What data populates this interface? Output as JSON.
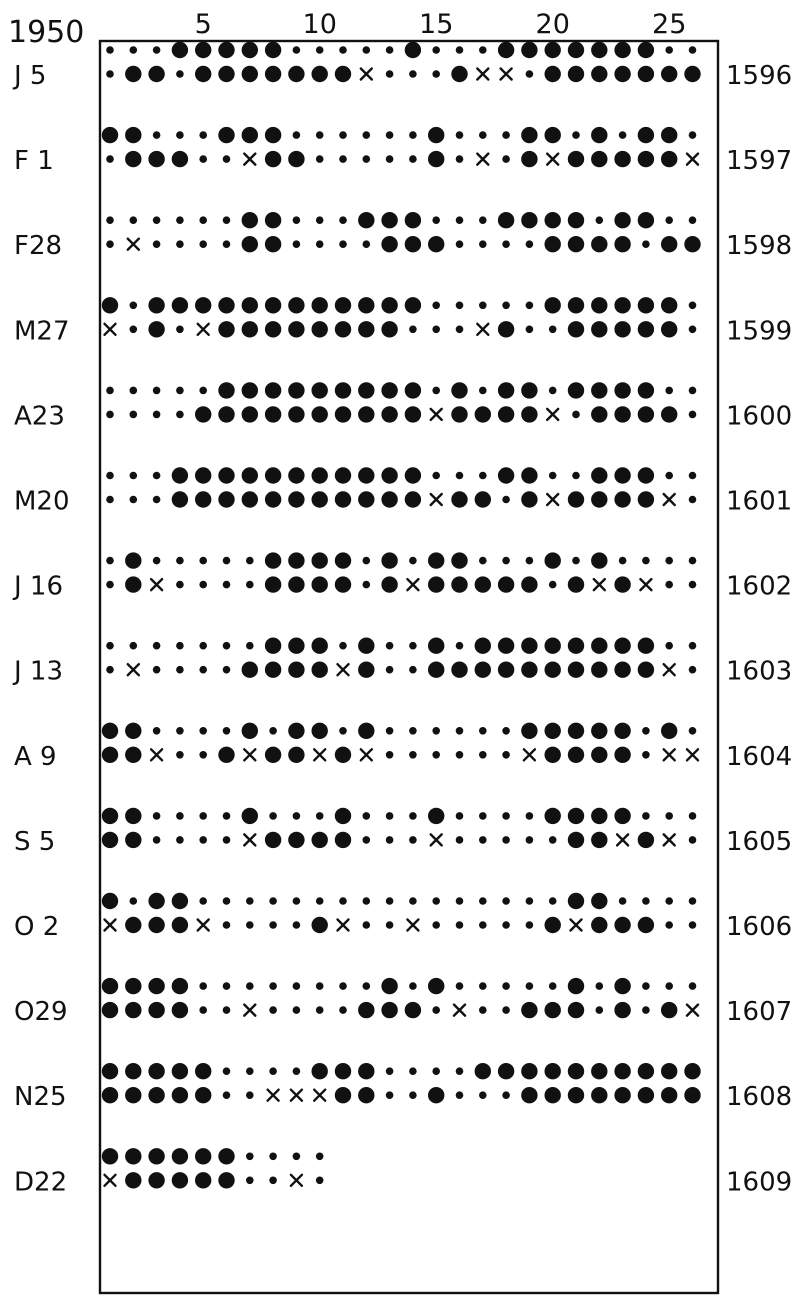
{
  "chart_data": {
    "type": "scatter",
    "title": "",
    "xlabel": "",
    "ylabel": "",
    "year_label": "1950",
    "x_ticks": [
      "5",
      "10",
      "15",
      "20",
      "25"
    ],
    "x_tick_values": [
      5,
      10,
      15,
      20,
      25
    ],
    "xlim": [
      1,
      27
    ],
    "grid": false,
    "legend": "none",
    "symbols": {
      "L": "large dot",
      "s": "small dot",
      "x": "cross",
      "-": "blank"
    },
    "rotations": [
      {
        "start": "J 5",
        "number": "1596",
        "rows": [
          "sssLLLLLsssssLsssLLLLLLLss",
          "sLLsLLLLLLLxsssLxxsLLLLLLL"
        ]
      },
      {
        "start": "F 1",
        "number": "1597",
        "rows": [
          "LLsssLLLssssssLsssLLsLsLLs",
          "sLLLssxLLsssssLsxsLxLLLLLx"
        ]
      },
      {
        "start": "F28",
        "number": "1598",
        "rows": [
          "ssssssLLsssLLLsssLLLLsLLss",
          "sxssssLLssssLLLssssLLLLsLLx"
        ]
      },
      {
        "start": "M27",
        "number": "1599",
        "rows": [
          "LsLLLLLLLLLLLLsssssLLLLLLs",
          "xsLsxLLLLLLLLsssxLssLLLLLss"
        ]
      },
      {
        "start": "A23",
        "number": "1600",
        "rows": [
          "sssssLLLLLLLLLsLsLLsLLLLss",
          "ssssLLLLLLLLLLxLLLLxsLLLLss"
        ]
      },
      {
        "start": "M20",
        "number": "1601",
        "rows": [
          "sssLLLLLLLLLLLsssLLssLLLsss",
          "sssLLLLLLLLLLLxLLsLxLLLLxss"
        ]
      },
      {
        "start": "J 16",
        "number": "1602",
        "rows": [
          "sLsssssLLLLsLsLLsssLsLssssLs",
          "sLxssssLLLLsLxLLLLLsLxLxsssLs"
        ]
      },
      {
        "start": "J 13",
        "number": "1603",
        "rows": [
          "sssssssLLLsLssLsLLLLLLLLsss",
          "sxssssLLLLxLssLLLLLLLLLLxss"
        ]
      },
      {
        "start": "A 9",
        "number": "1604",
        "rows": [
          "LLssssLsLLsLssssssLLLLLsLs",
          "LLxssLxLLxLxssssssxLLLLsxxs"
        ]
      },
      {
        "start": "S 5",
        "number": "1605",
        "rows": [
          "LLssssLsssLsssLssssLLLLssssL",
          "LLssssxLLLLsssxsssssLLxLxsssx"
        ]
      },
      {
        "start": "O 2",
        "number": "1606",
        "rows": [
          "LsLLssssssssssssssssLLsssssL",
          "xLLLxssssLxssxsssssLxLLLsssLL"
        ]
      },
      {
        "start": "O29",
        "number": "1607",
        "rows": [
          "LLLLssssssssLsLsssssLsLsssLss",
          "LLLLssxssssLLLsxssLLLsLsLxLL"
        ]
      },
      {
        "start": "N25",
        "number": "1608",
        "rows": [
          "LLLLLssssLLLssssLLLLLLLLLLs",
          "LLLLLssxxxLLssLsssLLLLLLLLLL"
        ]
      },
      {
        "start": "D22",
        "number": "1609",
        "rows": [
          "LLLLLLssss",
          "xLLLLLssxs"
        ]
      }
    ]
  }
}
